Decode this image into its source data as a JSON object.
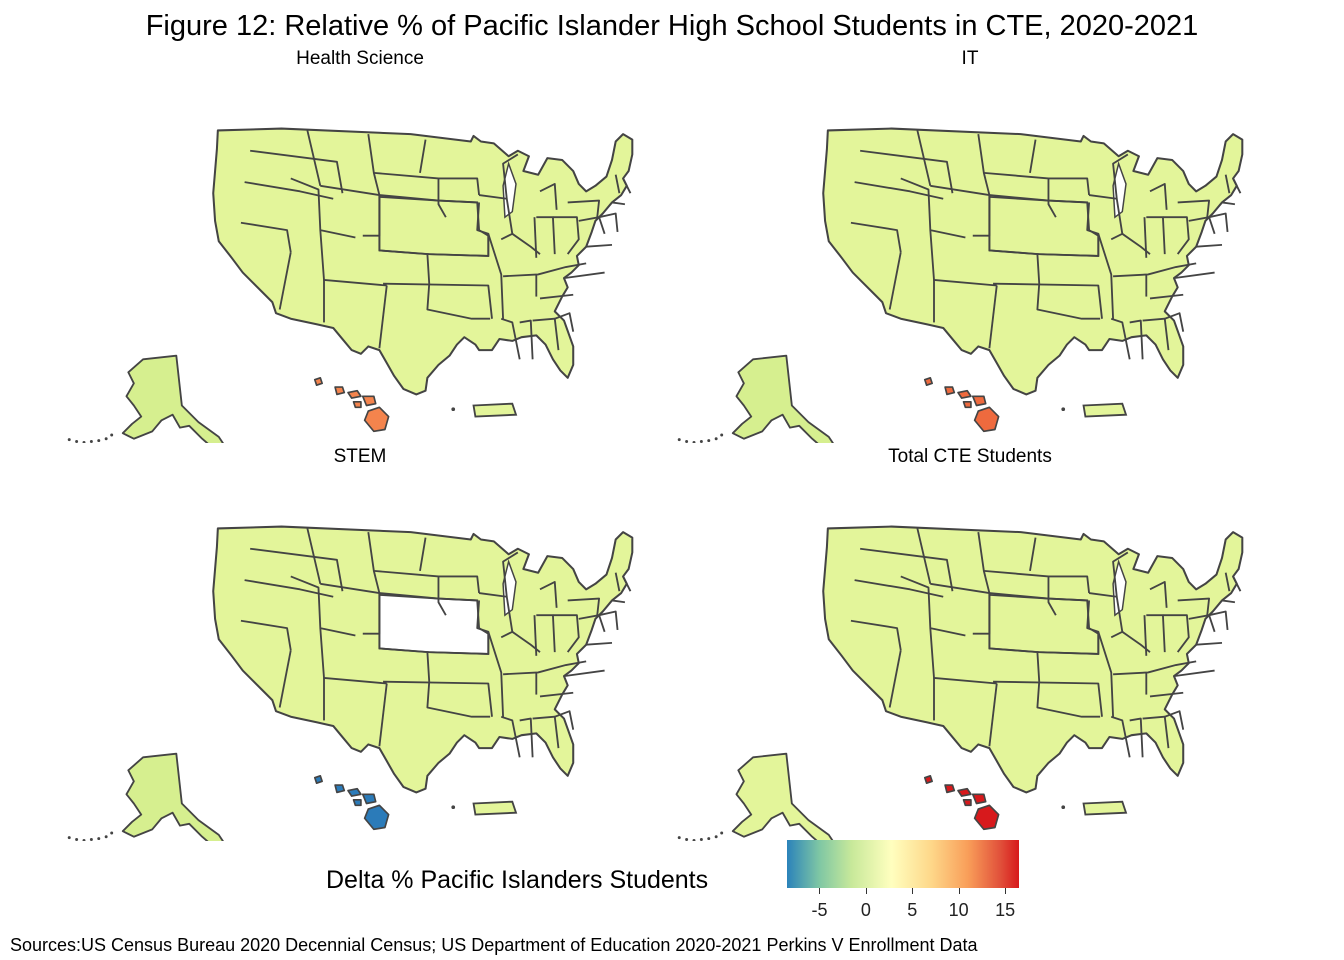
{
  "title": "Figure 12: Relative % of Pacific Islander High School Students in CTE, 2020-2021",
  "panels": [
    {
      "label": "Health  Science",
      "mainland_fill": "#e3f59a",
      "alaska_fill": "#d6ef8f",
      "hawaii_fill": "#f4844d",
      "pr_fill": "#e3f59a",
      "nebraska_fill": "#e3f59a"
    },
    {
      "label": "IT",
      "mainland_fill": "#e3f59a",
      "alaska_fill": "#d6ef8f",
      "hawaii_fill": "#ee6a3e",
      "pr_fill": "#e3f59a",
      "nebraska_fill": "#e3f59a"
    },
    {
      "label": "STEM",
      "mainland_fill": "#e3f59a",
      "alaska_fill": "#d6ef8f",
      "hawaii_fill": "#2b7bb9",
      "pr_fill": "#e3f59a",
      "nebraska_fill": "#ffffff"
    },
    {
      "label": "Total  CTE  Students",
      "mainland_fill": "#e3f59a",
      "alaska_fill": "#e3f59a",
      "hawaii_fill": "#d7191c",
      "pr_fill": "#e3f59a",
      "nebraska_fill": "#e3f59a"
    }
  ],
  "legend": {
    "title": "Delta % Pacific Islanders Students",
    "ticks": [
      "-5",
      "0",
      "5",
      "10",
      "15"
    ],
    "colors": [
      "#2b83ba",
      "#abdda4",
      "#ffffbf",
      "#fdae61",
      "#d7191c"
    ]
  },
  "source": "Sources:US Census Bureau 2020 Decennial Census; US Department of Education 2020-2021 Perkins V Enrollment Data"
}
